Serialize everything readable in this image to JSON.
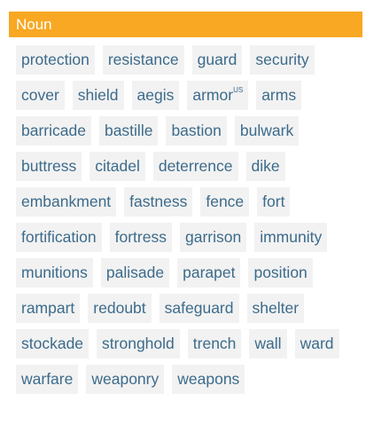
{
  "header": {
    "title": "Noun"
  },
  "colors": {
    "header_background": "#f8a823",
    "header_text": "#ffffff",
    "chip_background": "#f2f2f2",
    "chip_text": "#3c6b8b"
  },
  "words": [
    {
      "text": "protection"
    },
    {
      "text": "resistance"
    },
    {
      "text": "guard"
    },
    {
      "text": "security"
    },
    {
      "text": "cover"
    },
    {
      "text": "shield"
    },
    {
      "text": "aegis"
    },
    {
      "text": "armor",
      "sup": "US"
    },
    {
      "text": "arms"
    },
    {
      "text": "barricade"
    },
    {
      "text": "bastille"
    },
    {
      "text": "bastion"
    },
    {
      "text": "bulwark"
    },
    {
      "text": "buttress"
    },
    {
      "text": "citadel"
    },
    {
      "text": "deterrence"
    },
    {
      "text": "dike"
    },
    {
      "text": "embankment"
    },
    {
      "text": "fastness"
    },
    {
      "text": "fence"
    },
    {
      "text": "fort"
    },
    {
      "text": "fortification"
    },
    {
      "text": "fortress"
    },
    {
      "text": "garrison"
    },
    {
      "text": "immunity"
    },
    {
      "text": "munitions"
    },
    {
      "text": "palisade"
    },
    {
      "text": "parapet"
    },
    {
      "text": "position"
    },
    {
      "text": "rampart"
    },
    {
      "text": "redoubt"
    },
    {
      "text": "safeguard"
    },
    {
      "text": "shelter"
    },
    {
      "text": "stockade"
    },
    {
      "text": "stronghold"
    },
    {
      "text": "trench"
    },
    {
      "text": "wall"
    },
    {
      "text": "ward"
    },
    {
      "text": "warfare"
    },
    {
      "text": "weaponry"
    },
    {
      "text": "weapons"
    }
  ]
}
